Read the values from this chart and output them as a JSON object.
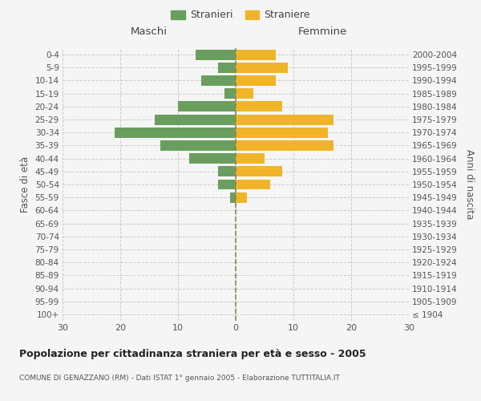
{
  "age_groups": [
    "100+",
    "95-99",
    "90-94",
    "85-89",
    "80-84",
    "75-79",
    "70-74",
    "65-69",
    "60-64",
    "55-59",
    "50-54",
    "45-49",
    "40-44",
    "35-39",
    "30-34",
    "25-29",
    "20-24",
    "15-19",
    "10-14",
    "5-9",
    "0-4"
  ],
  "birth_years": [
    "≤ 1904",
    "1905-1909",
    "1910-1914",
    "1915-1919",
    "1920-1924",
    "1925-1929",
    "1930-1934",
    "1935-1939",
    "1940-1944",
    "1945-1949",
    "1950-1954",
    "1955-1959",
    "1960-1964",
    "1965-1969",
    "1970-1974",
    "1975-1979",
    "1980-1984",
    "1985-1989",
    "1990-1994",
    "1995-1999",
    "2000-2004"
  ],
  "maschi": [
    0,
    0,
    0,
    0,
    0,
    0,
    0,
    0,
    0,
    1,
    3,
    3,
    8,
    13,
    21,
    14,
    10,
    2,
    6,
    3,
    7
  ],
  "femmine": [
    0,
    0,
    0,
    0,
    0,
    0,
    0,
    0,
    0,
    2,
    6,
    8,
    5,
    17,
    16,
    17,
    8,
    3,
    7,
    9,
    7
  ],
  "maschi_color": "#6a9e5f",
  "femmine_color": "#f0b429",
  "background_color": "#f5f5f5",
  "grid_color": "#cccccc",
  "dashed_line_color": "#888855",
  "title": "Popolazione per cittadinanza straniera per età e sesso - 2005",
  "subtitle": "COMUNE DI GENAZZANO (RM) - Dati ISTAT 1° gennaio 2005 - Elaborazione TUTTITALIA.IT",
  "xlabel_left": "Maschi",
  "xlabel_right": "Femmine",
  "ylabel_left": "Fasce di età",
  "ylabel_right": "Anni di nascita",
  "legend_stranieri": "Stranieri",
  "legend_straniere": "Straniere",
  "xlim": 30,
  "bar_height": 0.8
}
